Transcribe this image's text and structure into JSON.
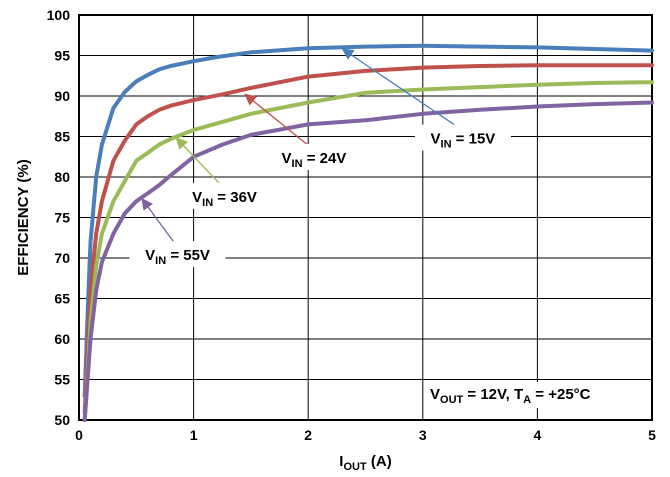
{
  "chart_data": {
    "type": "line",
    "xlabel": {
      "main": "I",
      "sub": "OUT",
      "rest": " (A)"
    },
    "ylabel": "EFFICIENCY (%)",
    "xlim": [
      0,
      5
    ],
    "ylim": [
      50,
      100
    ],
    "xticks": [
      "0",
      "1",
      "2",
      "3",
      "4",
      "5"
    ],
    "yticks": [
      "50",
      "55",
      "60",
      "65",
      "70",
      "75",
      "80",
      "85",
      "90",
      "95",
      "100"
    ],
    "grid": true,
    "condition": {
      "v": "V",
      "vsub": "OUT",
      "vtext": " = 12V, ",
      "t": "T",
      "tsub": "A",
      "ttext": " = +25°C"
    },
    "series": [
      {
        "name": "VIN = 15V",
        "label": {
          "main": "V",
          "sub": "IN",
          "rest": " = 15V"
        },
        "color": "#4a7ebb",
        "x": [
          0.05,
          0.08,
          0.1,
          0.15,
          0.2,
          0.3,
          0.4,
          0.5,
          0.6,
          0.7,
          0.8,
          1.0,
          1.2,
          1.5,
          2.0,
          2.5,
          3.0,
          3.5,
          4.0,
          4.5,
          5.0
        ],
        "y": [
          53,
          65,
          72,
          80,
          84,
          88.5,
          90.5,
          91.8,
          92.6,
          93.3,
          93.7,
          94.3,
          94.8,
          95.4,
          95.9,
          96.1,
          96.2,
          96.1,
          96.0,
          95.8,
          95.6
        ]
      },
      {
        "name": "VIN = 24V",
        "label": {
          "main": "V",
          "sub": "IN",
          "rest": " = 24V"
        },
        "color": "#c0504d",
        "x": [
          0.05,
          0.08,
          0.1,
          0.15,
          0.2,
          0.3,
          0.4,
          0.5,
          0.6,
          0.7,
          0.8,
          1.0,
          1.25,
          1.5,
          2.0,
          2.5,
          3.0,
          3.5,
          4.0,
          4.5,
          5.0
        ],
        "y": [
          51,
          60,
          66,
          73,
          77,
          82,
          84.5,
          86.5,
          87.5,
          88.3,
          88.8,
          89.5,
          90.2,
          91,
          92.4,
          93.1,
          93.5,
          93.7,
          93.8,
          93.8,
          93.8
        ]
      },
      {
        "name": "VIN = 36V",
        "label": {
          "main": "V",
          "sub": "IN",
          "rest": " = 36V"
        },
        "color": "#9bbb59",
        "x": [
          0.05,
          0.08,
          0.1,
          0.15,
          0.2,
          0.3,
          0.4,
          0.5,
          0.6,
          0.7,
          0.8,
          1.0,
          1.25,
          1.5,
          2.0,
          2.5,
          3.0,
          3.5,
          4.0,
          4.5,
          5.0
        ],
        "y": [
          50,
          57,
          62,
          69,
          73,
          77,
          79.5,
          82,
          83,
          84,
          84.7,
          85.8,
          86.8,
          87.8,
          89.2,
          90.4,
          90.8,
          91.1,
          91.4,
          91.6,
          91.7
        ]
      },
      {
        "name": "VIN = 55V",
        "label": {
          "main": "V",
          "sub": "IN",
          "rest": " = 55V"
        },
        "color": "#8064a2",
        "x": [
          0.05,
          0.08,
          0.1,
          0.15,
          0.2,
          0.3,
          0.4,
          0.5,
          0.6,
          0.7,
          0.8,
          1.0,
          1.25,
          1.5,
          2.0,
          2.5,
          3.0,
          3.5,
          4.0,
          4.5,
          5.0
        ],
        "y": [
          50,
          56,
          60,
          66,
          69.5,
          73,
          75.5,
          77,
          78,
          79,
          80.2,
          82.5,
          84,
          85.2,
          86.5,
          87,
          87.8,
          88.3,
          88.7,
          89,
          89.2
        ]
      }
    ],
    "annotations": [
      {
        "series": 0,
        "text_at": [
          3.35,
          84.5
        ],
        "arrow_to": [
          2.3,
          95.8
        ]
      },
      {
        "series": 1,
        "text_at": [
          2.05,
          82.1
        ],
        "arrow_to": [
          1.45,
          90.2
        ]
      },
      {
        "series": 2,
        "text_at": [
          1.27,
          77.3
        ],
        "arrow_to": [
          0.85,
          84.8
        ]
      },
      {
        "series": 3,
        "text_at": [
          0.86,
          70.1
        ],
        "arrow_to": [
          0.55,
          77.3
        ]
      }
    ]
  }
}
